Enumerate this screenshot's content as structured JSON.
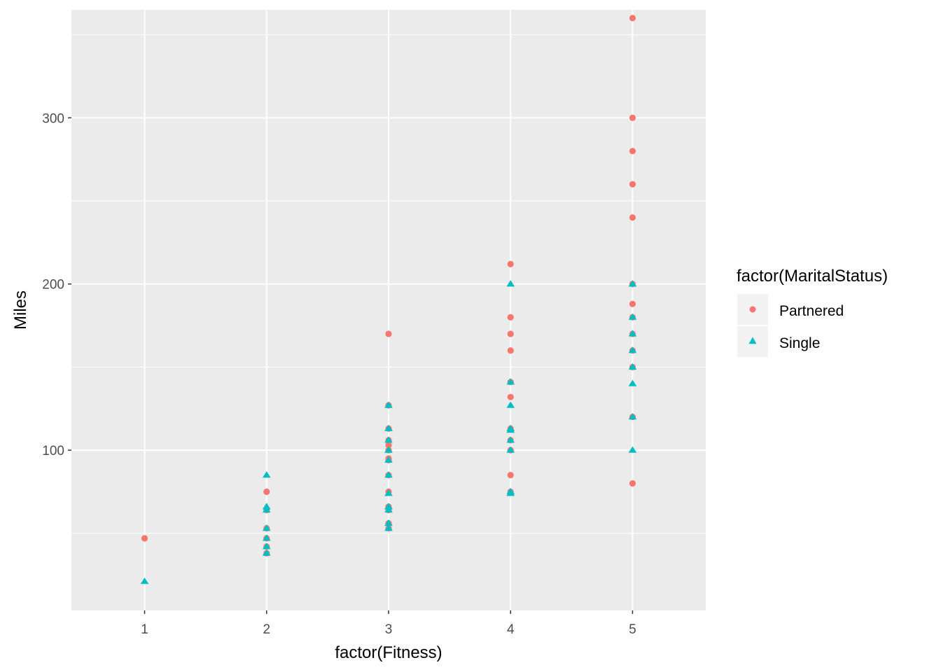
{
  "chart_data": {
    "type": "scatter",
    "xlabel": "factor(Fitness)",
    "ylabel": "Miles",
    "categories": [
      "1",
      "2",
      "3",
      "4",
      "5"
    ],
    "yticks": [
      100,
      200,
      300
    ],
    "ylim": [
      3.6,
      365
    ],
    "grid": true,
    "legend": {
      "title": "factor(MaritalStatus)",
      "placement": "right"
    },
    "series": [
      {
        "name": "Partnered",
        "marker": "circle",
        "color": "#F8766D",
        "points": [
          {
            "x": "1",
            "y": 47
          },
          {
            "x": "2",
            "y": 38
          },
          {
            "x": "2",
            "y": 42
          },
          {
            "x": "2",
            "y": 47
          },
          {
            "x": "2",
            "y": 53
          },
          {
            "x": "2",
            "y": 64
          },
          {
            "x": "2",
            "y": 75
          },
          {
            "x": "3",
            "y": 53
          },
          {
            "x": "3",
            "y": 56
          },
          {
            "x": "3",
            "y": 64
          },
          {
            "x": "3",
            "y": 66
          },
          {
            "x": "3",
            "y": 75
          },
          {
            "x": "3",
            "y": 85
          },
          {
            "x": "3",
            "y": 94
          },
          {
            "x": "3",
            "y": 95
          },
          {
            "x": "3",
            "y": 100
          },
          {
            "x": "3",
            "y": 103
          },
          {
            "x": "3",
            "y": 106
          },
          {
            "x": "3",
            "y": 113
          },
          {
            "x": "3",
            "y": 127
          },
          {
            "x": "3",
            "y": 170
          },
          {
            "x": "4",
            "y": 75
          },
          {
            "x": "4",
            "y": 85
          },
          {
            "x": "4",
            "y": 100
          },
          {
            "x": "4",
            "y": 106
          },
          {
            "x": "4",
            "y": 113
          },
          {
            "x": "4",
            "y": 132
          },
          {
            "x": "4",
            "y": 141
          },
          {
            "x": "4",
            "y": 160
          },
          {
            "x": "4",
            "y": 170
          },
          {
            "x": "4",
            "y": 180
          },
          {
            "x": "4",
            "y": 212
          },
          {
            "x": "5",
            "y": 80
          },
          {
            "x": "5",
            "y": 120
          },
          {
            "x": "5",
            "y": 150
          },
          {
            "x": "5",
            "y": 160
          },
          {
            "x": "5",
            "y": 170
          },
          {
            "x": "5",
            "y": 180
          },
          {
            "x": "5",
            "y": 188
          },
          {
            "x": "5",
            "y": 200
          },
          {
            "x": "5",
            "y": 240
          },
          {
            "x": "5",
            "y": 260
          },
          {
            "x": "5",
            "y": 280
          },
          {
            "x": "5",
            "y": 300
          },
          {
            "x": "5",
            "y": 360
          }
        ]
      },
      {
        "name": "Single",
        "marker": "triangle",
        "color": "#00BFC4",
        "points": [
          {
            "x": "1",
            "y": 21
          },
          {
            "x": "2",
            "y": 38
          },
          {
            "x": "2",
            "y": 42
          },
          {
            "x": "2",
            "y": 47
          },
          {
            "x": "2",
            "y": 53
          },
          {
            "x": "2",
            "y": 64
          },
          {
            "x": "2",
            "y": 66
          },
          {
            "x": "2",
            "y": 85
          },
          {
            "x": "3",
            "y": 53
          },
          {
            "x": "3",
            "y": 56
          },
          {
            "x": "3",
            "y": 64
          },
          {
            "x": "3",
            "y": 66
          },
          {
            "x": "3",
            "y": 74
          },
          {
            "x": "3",
            "y": 85
          },
          {
            "x": "3",
            "y": 94
          },
          {
            "x": "3",
            "y": 100
          },
          {
            "x": "3",
            "y": 106
          },
          {
            "x": "3",
            "y": 113
          },
          {
            "x": "3",
            "y": 127
          },
          {
            "x": "4",
            "y": 74
          },
          {
            "x": "4",
            "y": 75
          },
          {
            "x": "4",
            "y": 100
          },
          {
            "x": "4",
            "y": 106
          },
          {
            "x": "4",
            "y": 112
          },
          {
            "x": "4",
            "y": 113
          },
          {
            "x": "4",
            "y": 127
          },
          {
            "x": "4",
            "y": 141
          },
          {
            "x": "4",
            "y": 200
          },
          {
            "x": "5",
            "y": 100
          },
          {
            "x": "5",
            "y": 120
          },
          {
            "x": "5",
            "y": 140
          },
          {
            "x": "5",
            "y": 150
          },
          {
            "x": "5",
            "y": 160
          },
          {
            "x": "5",
            "y": 170
          },
          {
            "x": "5",
            "y": 180
          },
          {
            "x": "5",
            "y": 200
          }
        ]
      }
    ]
  }
}
